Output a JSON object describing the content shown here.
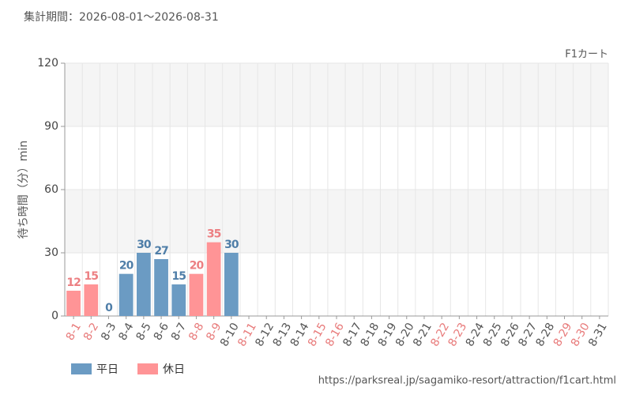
{
  "chart_data": {
    "type": "bar",
    "period": "集計期間：2026-08-01～2026-08-31",
    "title": "F1カート",
    "y_label": "待ち時間（分）min",
    "source": "https://parksreal.jp/sagamiko-resort/attraction/f1cart.html",
    "categories": [
      "8-1",
      "8-2",
      "8-3",
      "8-4",
      "8-5",
      "8-6",
      "8-7",
      "8-8",
      "8-9",
      "8-10",
      "8-11",
      "8-12",
      "8-13",
      "8-14",
      "8-15",
      "8-16",
      "8-17",
      "8-18",
      "8-19",
      "8-20",
      "8-21",
      "8-22",
      "8-23",
      "8-24",
      "8-25",
      "8-26",
      "8-27",
      "8-28",
      "8-29",
      "8-30",
      "8-31"
    ],
    "category_colors": [
      "#e87a7a",
      "#e87a7a",
      "#555555",
      "#555555",
      "#555555",
      "#555555",
      "#555555",
      "#e87a7a",
      "#e87a7a",
      "#555555",
      "#e87a7a",
      "#555555",
      "#555555",
      "#555555",
      "#e87a7a",
      "#e87a7a",
      "#555555",
      "#555555",
      "#555555",
      "#555555",
      "#555555",
      "#e87a7a",
      "#e87a7a",
      "#555555",
      "#555555",
      "#555555",
      "#555555",
      "#555555",
      "#e87a7a",
      "#e87a7a",
      "#555555"
    ],
    "series": [
      {
        "name": "平日",
        "color": "#6b9bc3",
        "label_color": "#4f7ea8",
        "values": [
          null,
          null,
          0,
          20,
          30,
          27,
          15,
          null,
          null,
          30,
          null,
          null,
          null,
          null,
          null,
          null,
          null,
          null,
          null,
          null,
          null,
          null,
          null,
          null,
          null,
          null,
          null,
          null,
          null,
          null,
          null
        ]
      },
      {
        "name": "休日",
        "color": "#ff9496",
        "label_color": "#ec7f82",
        "values": [
          12,
          15,
          null,
          null,
          null,
          null,
          null,
          20,
          35,
          null,
          null,
          null,
          null,
          null,
          null,
          null,
          null,
          null,
          null,
          null,
          null,
          null,
          null,
          null,
          null,
          null,
          null,
          null,
          null,
          null,
          null
        ]
      }
    ],
    "ylim": [
      0,
      120
    ],
    "yticks": [
      0,
      30,
      60,
      90,
      120
    ],
    "grid": true,
    "band_color": "#f5f5f5"
  }
}
